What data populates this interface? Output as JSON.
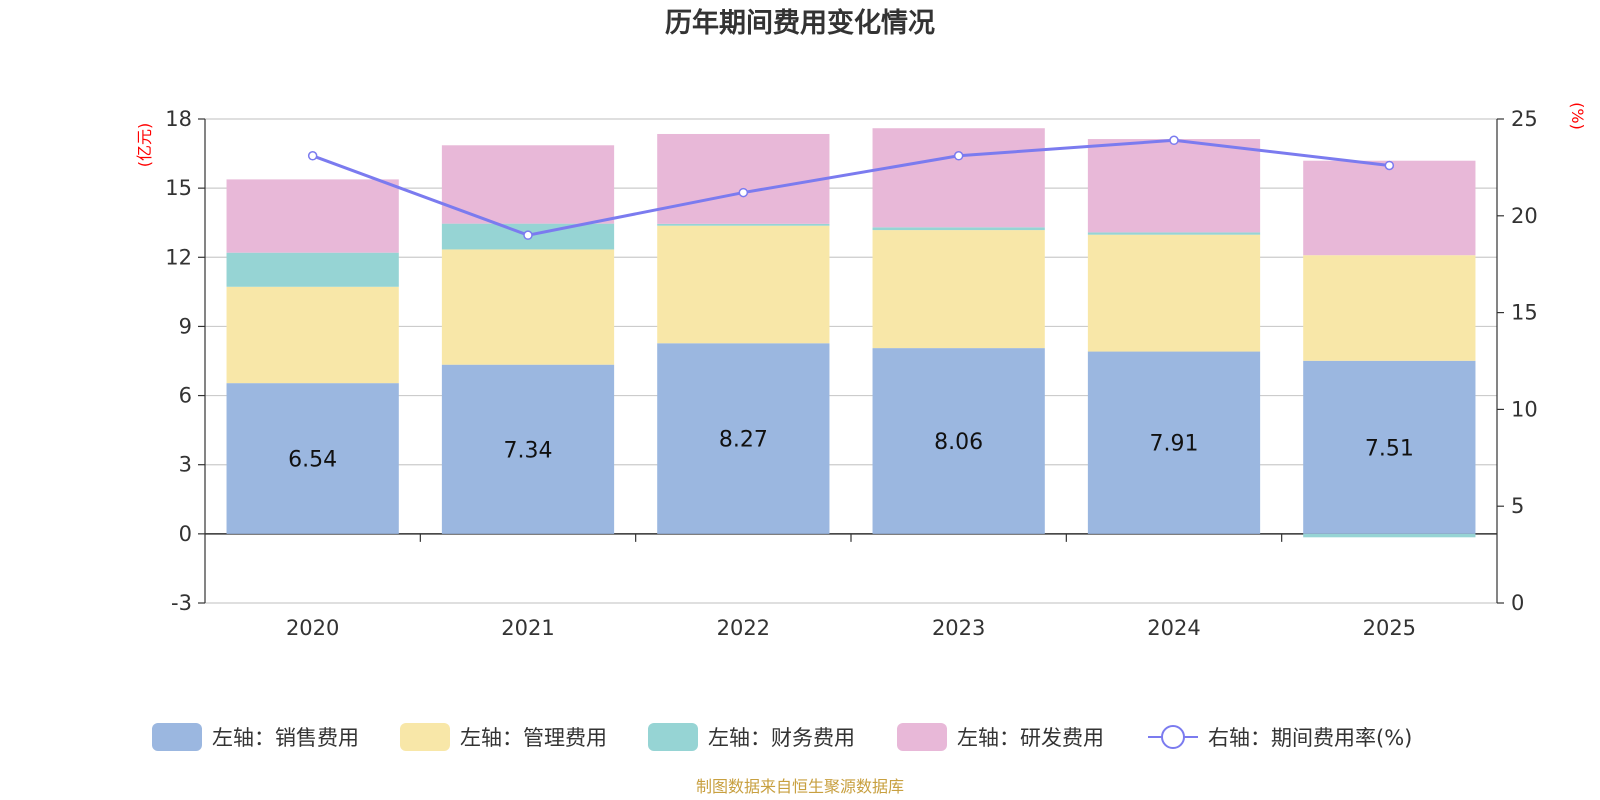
{
  "chart_data": {
    "type": "bar",
    "title": "历年期间费用变化情况",
    "categories": [
      "2020",
      "2021",
      "2022",
      "2023",
      "2024",
      "2025"
    ],
    "left_unit": "(亿元)",
    "right_unit": "(%)",
    "y_left": {
      "min": -3,
      "max": 18,
      "ticks": [
        -3,
        0,
        3,
        6,
        9,
        12,
        15,
        18
      ]
    },
    "y_right": {
      "min": 0,
      "max": 25,
      "ticks": [
        0,
        5,
        10,
        15,
        20,
        25
      ]
    },
    "series": [
      {
        "name": "左轴：销售费用",
        "color": "#9bb7e0",
        "values": [
          6.54,
          7.34,
          8.27,
          8.06,
          7.91,
          7.51
        ]
      },
      {
        "name": "左轴：管理费用",
        "color": "#f8e7a8",
        "values": [
          4.18,
          5.0,
          5.1,
          5.12,
          5.07,
          4.58
        ]
      },
      {
        "name": "左轴：财务费用",
        "color": "#96d4d4",
        "values": [
          1.48,
          1.12,
          0.08,
          0.12,
          0.1,
          -0.15
        ]
      },
      {
        "name": "左轴：研发费用",
        "color": "#e8b8d8",
        "values": [
          3.18,
          3.4,
          3.9,
          4.3,
          4.05,
          4.1
        ]
      }
    ],
    "line": {
      "name": "右轴：期间费用率(%)",
      "color": "#7b7bef",
      "values": [
        23.1,
        19.0,
        21.2,
        23.1,
        23.9,
        22.6
      ]
    },
    "bar_labels_series": 0
  },
  "source_text": "制图数据来自恒生聚源数据库"
}
